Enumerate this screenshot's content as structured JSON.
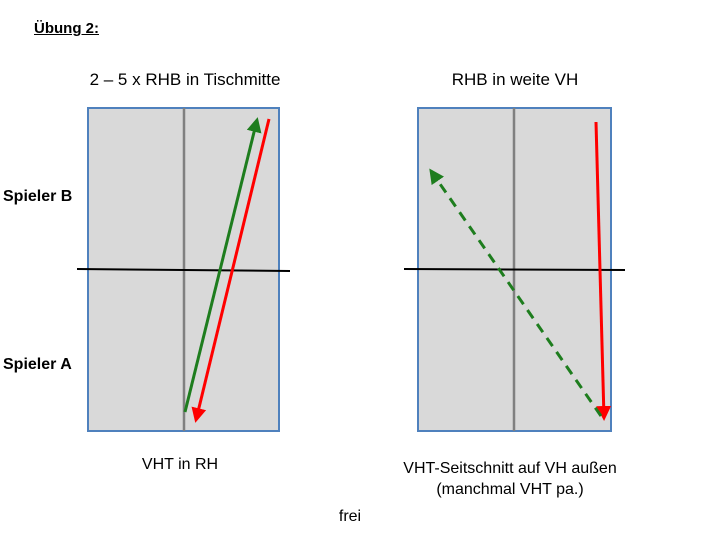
{
  "heading": "Übung 2:",
  "left_diagram": {
    "title": "2 – 5 x RHB in Tischmitte",
    "caption": "VHT in RH"
  },
  "right_diagram": {
    "title": "RHB in weite VH",
    "caption_line1": "VHT-Seitschnitt auf VH außen",
    "caption_line2": "(manchmal VHT pa.)"
  },
  "players": {
    "top": "Spieler B",
    "bottom": "Spieler A"
  },
  "footer": "frei",
  "colors": {
    "table_fill": "#d9d9d9",
    "table_border": "#4f81bd",
    "center_line": "#808080",
    "net": "#000000",
    "arrow_green": "#1e7d1e",
    "arrow_red": "#ff0000"
  }
}
